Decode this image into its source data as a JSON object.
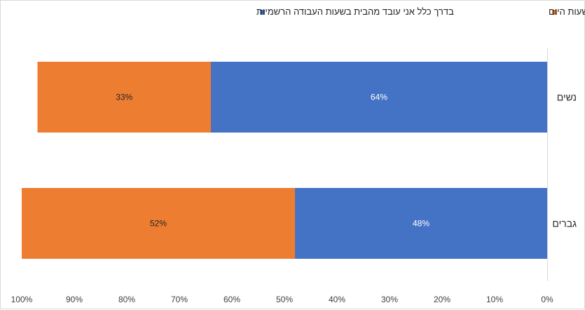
{
  "chart_data": {
    "type": "bar",
    "orientation": "horizontal-stacked-100",
    "x_axis_direction": "right-to-left",
    "categories": [
      "נשים",
      "גברים"
    ],
    "series": [
      {
        "name": "בדרך כלל אני עובד מהבית בשעות העבודה הרשמיות",
        "color": "#4472C4",
        "label_color": "#ffffff",
        "values": [
          64,
          48
        ],
        "labels": [
          "64%",
          "48%"
        ]
      },
      {
        "name": "בדרך כלל אני מפזר את שעות העבודה מהבית על פני כל שעות היום",
        "color": "#ED7D31",
        "label_color": "#262626",
        "values": [
          33,
          52
        ],
        "labels": [
          "33%",
          "52%"
        ]
      }
    ],
    "xlim": [
      0,
      100
    ],
    "x_ticks": [
      "0%",
      "10%",
      "20%",
      "30%",
      "40%",
      "50%",
      "60%",
      "70%",
      "80%",
      "90%",
      "100%"
    ],
    "grid": false,
    "legend_position": "top"
  }
}
